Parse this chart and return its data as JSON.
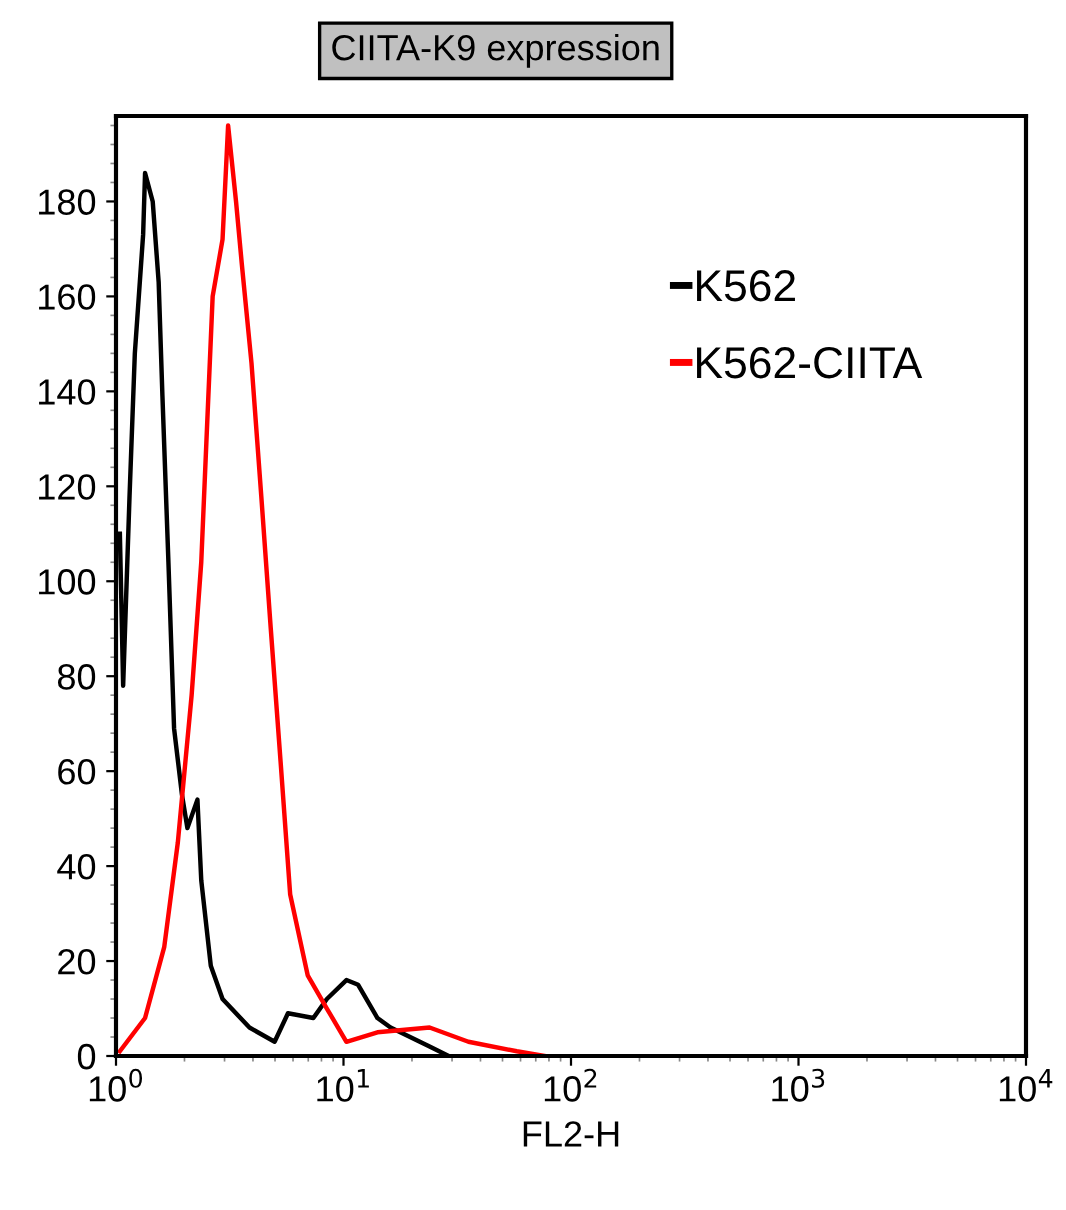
{
  "chart_data": {
    "type": "line",
    "title": "CIITA-K9 expression",
    "xlabel": "FL2-H",
    "log": "x",
    "xlim": [
      1,
      10000
    ],
    "xticks": [
      {
        "value": 1,
        "label": "10$^{0}$"
      },
      {
        "value": 10,
        "label": "10$^{1}$"
      },
      {
        "value": 100,
        "label": "10$^{2}$"
      },
      {
        "value": 1000,
        "label": "10$^{3}$"
      },
      {
        "value": 10000,
        "label": "10$^{4}$"
      }
    ],
    "ylim": [
      0,
      198
    ],
    "yticks": [
      0,
      20,
      40,
      60,
      80,
      100,
      120,
      140,
      160,
      180
    ],
    "grid": false,
    "legend": "top right",
    "line_style": "solid",
    "marker": "none",
    "series": [
      {
        "name": "K562",
        "color": "#000000",
        "x": [
          1.04,
          1.075,
          1.147,
          1.21,
          1.316,
          1.342,
          1.45,
          1.54,
          1.6,
          1.7,
          1.8,
          1.95,
          2.06,
          2.28,
          2.37,
          2.61,
          2.94,
          3.86,
          4.98,
          5.7,
          7.37,
          8.45,
          10.3,
          11.6,
          14.1,
          16.1,
          23.9,
          29
        ],
        "values": [
          110,
          78,
          118,
          148,
          173,
          186,
          180,
          163,
          139,
          104,
          69,
          55,
          48,
          54,
          37,
          19,
          12,
          6,
          3,
          9,
          8,
          12,
          16,
          15,
          8,
          6,
          2,
          0
        ]
      },
      {
        "name": "K562-CIITA",
        "color": "#ff0000",
        "x": [
          1.04,
          1.342,
          1.63,
          1.87,
          2.15,
          2.37,
          2.51,
          2.66,
          2.94,
          3.11,
          3.37,
          3.57,
          3.94,
          4.35,
          4.79,
          5.29,
          5.83,
          6.96,
          8.45,
          10.3,
          14.1,
          23.9,
          35.4,
          57.8,
          77
        ],
        "values": [
          1,
          8,
          23,
          45,
          76,
          104,
          132,
          160,
          172,
          196,
          180,
          167,
          146,
          118,
          90,
          62,
          34,
          17,
          10,
          3,
          5,
          6,
          3,
          1,
          0
        ]
      }
    ]
  }
}
